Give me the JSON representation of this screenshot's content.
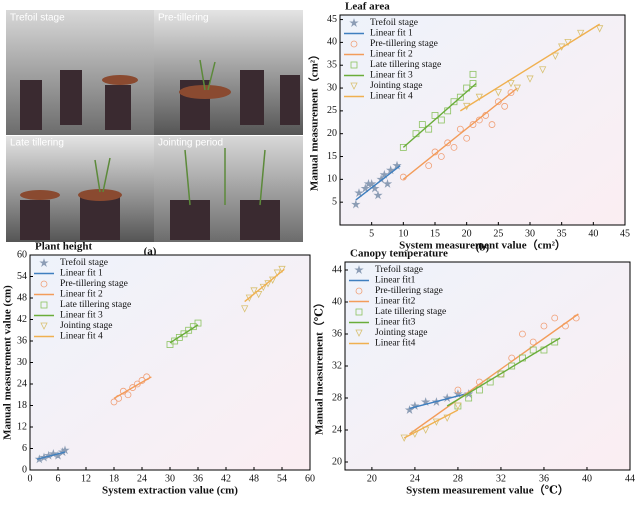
{
  "photo_panel": {
    "labels": [
      "Trefoil stage",
      "Pre-tillering",
      "Late tillering",
      "Jointing period"
    ],
    "caption": "(a)"
  },
  "chart_data": [
    {
      "type": "scatter",
      "title": "Leaf area",
      "caption": "(b)",
      "xlabel": "System measurement value（cm²）",
      "ylabel": "Manual measurement（cm²）",
      "xlim": [
        0,
        45
      ],
      "ylim": [
        0,
        46
      ],
      "xticks": [
        5,
        10,
        15,
        20,
        25,
        30,
        35,
        40,
        45
      ],
      "yticks": [
        5,
        10,
        15,
        20,
        25,
        30,
        35,
        40,
        45
      ],
      "legend": "top-left",
      "series": [
        {
          "name": "Trefoil stage",
          "marker": "star",
          "color": "#8c9db5",
          "x": [
            2.5,
            3,
            4,
            4.5,
            5,
            5.5,
            6,
            6.5,
            7,
            7.5,
            8,
            9
          ],
          "values": [
            4.5,
            7,
            8,
            9,
            9,
            8,
            6.5,
            10,
            11,
            9,
            12,
            13
          ]
        },
        {
          "name": "Linear fit 1",
          "type": "line",
          "color": "#3f7fbf",
          "x": [
            2.5,
            9.5
          ],
          "values": [
            5.5,
            13
          ]
        },
        {
          "name": "Pre-tillering stage",
          "marker": "circle",
          "color": "#f0a078",
          "x": [
            10,
            14,
            15,
            16,
            17,
            18,
            19,
            20,
            21,
            22,
            23,
            24,
            25,
            26,
            27
          ],
          "values": [
            10.5,
            13,
            16,
            15,
            18,
            17,
            21,
            19,
            22,
            23,
            24,
            22,
            27,
            26,
            29
          ]
        },
        {
          "name": "Linear fit 2",
          "type": "line",
          "color": "#f39c5a",
          "x": [
            10,
            28
          ],
          "values": [
            10,
            30
          ]
        },
        {
          "name": "Late tillering stage",
          "marker": "square",
          "color": "#8cc260",
          "x": [
            10,
            12,
            13,
            14,
            15,
            16,
            17,
            18,
            19,
            20,
            21,
            21
          ],
          "values": [
            17,
            20,
            22,
            21,
            24,
            23,
            25,
            27,
            28,
            30,
            33,
            31
          ]
        },
        {
          "name": "Linear fit 3",
          "type": "line",
          "color": "#6aad3a",
          "x": [
            10,
            21.5
          ],
          "values": [
            17,
            31
          ]
        },
        {
          "name": "Jointing stage",
          "marker": "triangle-down",
          "color": "#d8c070",
          "x": [
            20,
            22,
            25,
            27,
            28,
            30,
            32,
            34,
            35,
            36,
            38,
            41
          ],
          "values": [
            26,
            28,
            29,
            31,
            30,
            32,
            34,
            37,
            39,
            40,
            42,
            43
          ]
        },
        {
          "name": "Linear fit 4",
          "type": "line",
          "color": "#f0b050",
          "x": [
            19,
            41
          ],
          "values": [
            25,
            44
          ]
        }
      ]
    },
    {
      "type": "scatter",
      "title": "Plant height",
      "xlabel": "System extraction value (cm)",
      "ylabel": "Manual measurement value (cm)",
      "xlim": [
        0,
        60
      ],
      "ylim": [
        0,
        60
      ],
      "xticks": [
        0,
        6,
        12,
        18,
        24,
        30,
        36,
        42,
        48,
        54,
        60
      ],
      "yticks": [
        0,
        6,
        12,
        18,
        24,
        30,
        36,
        42,
        48,
        54,
        60
      ],
      "legend": "top-left",
      "series": [
        {
          "name": "Trefoil stage",
          "marker": "star",
          "color": "#8c9db5",
          "x": [
            2,
            3,
            4,
            5,
            6,
            7,
            7.5
          ],
          "values": [
            3,
            3.5,
            4,
            4.5,
            4,
            5,
            5.5
          ]
        },
        {
          "name": "Linear fit 1",
          "type": "line",
          "color": "#3f7fbf",
          "x": [
            1.5,
            7.5
          ],
          "values": [
            3,
            5
          ]
        },
        {
          "name": "Pre-tillering stage",
          "marker": "circle",
          "color": "#f0a078",
          "x": [
            18,
            19,
            20,
            21,
            22,
            23,
            24,
            25
          ],
          "values": [
            19,
            20,
            22,
            21,
            23,
            24,
            25,
            26
          ]
        },
        {
          "name": "Linear fit 2",
          "type": "line",
          "color": "#f39c5a",
          "x": [
            18,
            26
          ],
          "values": [
            20,
            26
          ]
        },
        {
          "name": "Late tillering stage",
          "marker": "square",
          "color": "#8cc260",
          "x": [
            30,
            31,
            32,
            33,
            34,
            35,
            36
          ],
          "values": [
            35,
            36,
            37,
            38,
            39,
            40,
            41
          ]
        },
        {
          "name": "Linear fit 3",
          "type": "line",
          "color": "#6aad3a",
          "x": [
            30,
            36
          ],
          "values": [
            35.5,
            40.5
          ]
        },
        {
          "name": "Jointing stage",
          "marker": "triangle-down",
          "color": "#d8c070",
          "x": [
            46,
            47,
            48,
            49,
            50,
            51,
            52,
            53,
            54
          ],
          "values": [
            45,
            48,
            50,
            49,
            51,
            52,
            53,
            55,
            56
          ]
        },
        {
          "name": "Linear fit 4",
          "type": "line",
          "color": "#f0b050",
          "x": [
            46,
            54.5
          ],
          "values": [
            47,
            56
          ]
        }
      ]
    },
    {
      "type": "scatter",
      "title": "Canopy temperature",
      "xlabel": "System measurement value（℃）",
      "ylabel": "Manual measurement（℃）",
      "xlim": [
        17.5,
        44
      ],
      "ylim": [
        19,
        45
      ],
      "xticks": [
        20,
        24,
        28,
        32,
        36,
        40,
        44
      ],
      "yticks": [
        20,
        24,
        28,
        32,
        36,
        40,
        44
      ],
      "legend": "top-left",
      "series": [
        {
          "name": "Trefoil stage",
          "marker": "star",
          "color": "#8c9db5",
          "x": [
            23.5,
            24,
            25,
            26,
            27,
            28,
            29
          ],
          "values": [
            26.5,
            27,
            27.5,
            27.5,
            28,
            28.5,
            28.5
          ]
        },
        {
          "name": "Linear fit1",
          "type": "line",
          "color": "#3f7fbf",
          "x": [
            23.5,
            29
          ],
          "values": [
            26.7,
            28.6
          ]
        },
        {
          "name": "Pre-tillering stage",
          "marker": "circle",
          "color": "#f0a078",
          "x": [
            28,
            30,
            32,
            33,
            34,
            35,
            36,
            37,
            38,
            39
          ],
          "values": [
            29,
            30,
            31,
            33,
            36,
            35,
            37,
            38,
            37,
            38
          ]
        },
        {
          "name": "Linear fit2",
          "type": "line",
          "color": "#f39c5a",
          "x": [
            23.5,
            39.2
          ],
          "values": [
            23.5,
            38.5
          ]
        },
        {
          "name": "Late tillering stage",
          "marker": "square",
          "color": "#8cc260",
          "x": [
            28,
            29,
            30,
            31,
            32,
            33,
            34,
            35,
            36,
            37
          ],
          "values": [
            27,
            28,
            29,
            30,
            31,
            32,
            33,
            34,
            34,
            35
          ]
        },
        {
          "name": "Linear fit3",
          "type": "line",
          "color": "#6aad3a",
          "x": [
            27,
            37.5
          ],
          "values": [
            27,
            35.5
          ]
        },
        {
          "name": "Jointing stage",
          "marker": "triangle-down",
          "color": "#d8c070",
          "x": [
            23,
            24,
            25,
            26,
            27,
            28
          ],
          "values": [
            23,
            23.5,
            24,
            25,
            25.5,
            27
          ]
        },
        {
          "name": "Linear fit4",
          "type": "line",
          "color": "#f0b050",
          "x": [
            23,
            28
          ],
          "values": [
            23,
            26.5
          ]
        }
      ]
    }
  ]
}
